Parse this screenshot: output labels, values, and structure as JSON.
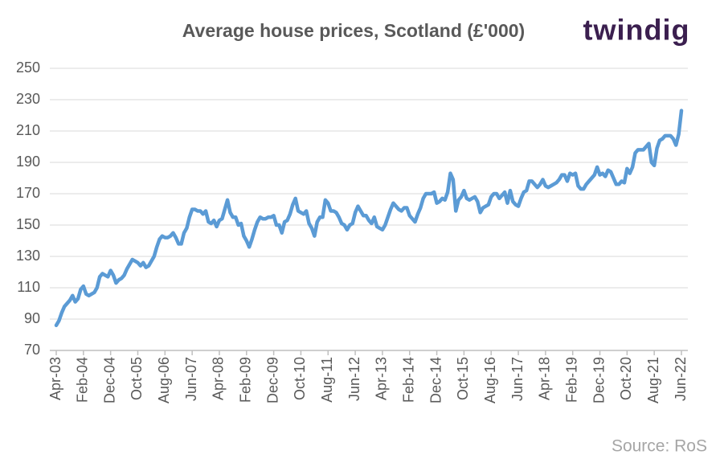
{
  "chart_data": {
    "type": "line",
    "title": "Average house prices, Scotland (£'000)",
    "logo": "twindig",
    "source": "Source: RoS",
    "color": "#5b9bd5",
    "grid": true,
    "ylim": [
      70,
      250
    ],
    "yticks": [
      70,
      90,
      110,
      130,
      150,
      170,
      190,
      210,
      230,
      250
    ],
    "categories": [
      "Apr-03",
      null,
      null,
      null,
      null,
      null,
      null,
      null,
      null,
      null,
      "Feb-04",
      null,
      null,
      null,
      null,
      null,
      null,
      null,
      null,
      null,
      "Dec-04",
      null,
      null,
      null,
      null,
      null,
      null,
      null,
      null,
      null,
      "Oct-05",
      null,
      null,
      null,
      null,
      null,
      null,
      null,
      null,
      null,
      "Aug-06",
      null,
      null,
      null,
      null,
      null,
      null,
      null,
      null,
      null,
      "Jun-07",
      null,
      null,
      null,
      null,
      null,
      null,
      null,
      null,
      null,
      "Apr-08",
      null,
      null,
      null,
      null,
      null,
      null,
      null,
      null,
      null,
      "Feb-09",
      null,
      null,
      null,
      null,
      null,
      null,
      null,
      null,
      null,
      "Dec-09",
      null,
      null,
      null,
      null,
      null,
      null,
      null,
      null,
      null,
      "Oct-10",
      null,
      null,
      null,
      null,
      null,
      null,
      null,
      null,
      null,
      "Aug-11",
      null,
      null,
      null,
      null,
      null,
      null,
      null,
      null,
      null,
      "Jun-12",
      null,
      null,
      null,
      null,
      null,
      null,
      null,
      null,
      null,
      "Apr-13",
      null,
      null,
      null,
      null,
      null,
      null,
      null,
      null,
      null,
      "Feb-14",
      null,
      null,
      null,
      null,
      null,
      null,
      null,
      null,
      null,
      "Dec-14",
      null,
      null,
      null,
      null,
      null,
      null,
      null,
      null,
      null,
      "Oct-15",
      null,
      null,
      null,
      null,
      null,
      null,
      null,
      null,
      null,
      "Aug-16",
      null,
      null,
      null,
      null,
      null,
      null,
      null,
      null,
      null,
      "Jun-17",
      null,
      null,
      null,
      null,
      null,
      null,
      null,
      null,
      null,
      "Apr-18",
      null,
      null,
      null,
      null,
      null,
      null,
      null,
      null,
      null,
      "Feb-19",
      null,
      null,
      null,
      null,
      null,
      null,
      null,
      null,
      null,
      "Dec-19",
      null,
      null,
      null,
      null,
      null,
      null,
      null,
      null,
      null,
      "Oct-20",
      null,
      null,
      null,
      null,
      null,
      null,
      null,
      null,
      null,
      "Aug-21",
      null,
      null,
      null,
      null,
      null,
      null,
      null,
      null,
      null,
      "Jun-22"
    ],
    "values": [
      86,
      89,
      94,
      98,
      100,
      102,
      105,
      101,
      103,
      109,
      111,
      106,
      105,
      106,
      107,
      110,
      117,
      119,
      118,
      117,
      121,
      118,
      113,
      115,
      116,
      118,
      122,
      125,
      128,
      127,
      126,
      124,
      126,
      123,
      124,
      127,
      130,
      136,
      141,
      143,
      142,
      142,
      143,
      145,
      142,
      138,
      138,
      145,
      148,
      155,
      160,
      160,
      159,
      159,
      157,
      159,
      152,
      151,
      153,
      149,
      153,
      154,
      160,
      166,
      158,
      155,
      155,
      150,
      151,
      143,
      140,
      136,
      141,
      147,
      152,
      155,
      154,
      154,
      155,
      155,
      156,
      150,
      150,
      145,
      152,
      153,
      157,
      163,
      167,
      159,
      158,
      157,
      159,
      151,
      148,
      143,
      152,
      155,
      155,
      166,
      164,
      159,
      159,
      158,
      155,
      151,
      150,
      147,
      150,
      151,
      158,
      162,
      159,
      156,
      156,
      153,
      151,
      155,
      149,
      148,
      147,
      150,
      155,
      160,
      164,
      162,
      160,
      159,
      161,
      161,
      156,
      154,
      152,
      157,
      161,
      167,
      170,
      170,
      170,
      171,
      164,
      165,
      167,
      166,
      171,
      183,
      179,
      159,
      166,
      168,
      172,
      167,
      166,
      167,
      168,
      165,
      158,
      161,
      162,
      163,
      168,
      170,
      170,
      167,
      169,
      171,
      164,
      172,
      165,
      163,
      162,
      167,
      171,
      172,
      178,
      178,
      176,
      174,
      176,
      179,
      175,
      174,
      175,
      176,
      177,
      179,
      182,
      182,
      178,
      183,
      182,
      183,
      175,
      173,
      173,
      176,
      178,
      180,
      182,
      187,
      182,
      183,
      181,
      185,
      184,
      180,
      176,
      176,
      178,
      177,
      186,
      183,
      187,
      196,
      198,
      198,
      198,
      200,
      202,
      190,
      188,
      199,
      204,
      205,
      207,
      207,
      207,
      205,
      201,
      208,
      223
    ]
  }
}
